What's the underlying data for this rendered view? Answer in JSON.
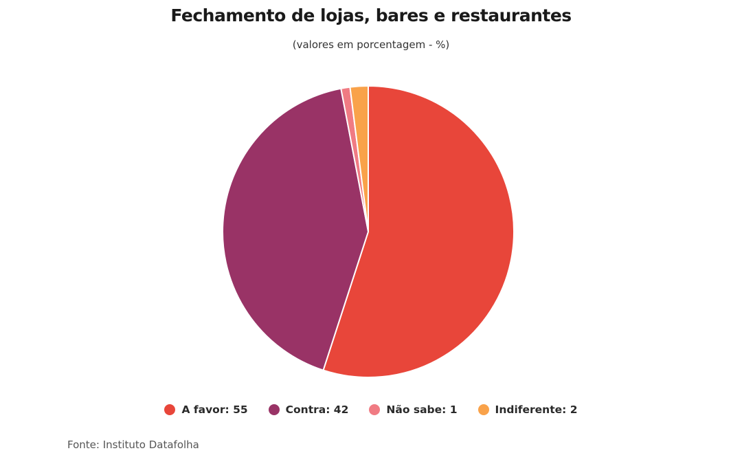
{
  "chart_data": {
    "type": "pie",
    "title": "Fechamento de lojas, bares e restaurantes",
    "subtitle": "(valores em porcentagem - %)",
    "categories": [
      "A favor",
      "Contra",
      "Não sabe",
      "Indiferente"
    ],
    "values": [
      55,
      42,
      1,
      2
    ],
    "colors": [
      "#e8463a",
      "#993366",
      "#f07b83",
      "#f9a24a"
    ],
    "legend_position": "bottom",
    "source": "Fonte: Instituto Datafolha"
  },
  "legend": [
    {
      "label": "A favor: 55",
      "color": "#e8463a"
    },
    {
      "label": "Contra: 42",
      "color": "#993366"
    },
    {
      "label": "Não sabe: 1",
      "color": "#f07b83"
    },
    {
      "label": "Indiferente: 2",
      "color": "#f9a24a"
    }
  ]
}
